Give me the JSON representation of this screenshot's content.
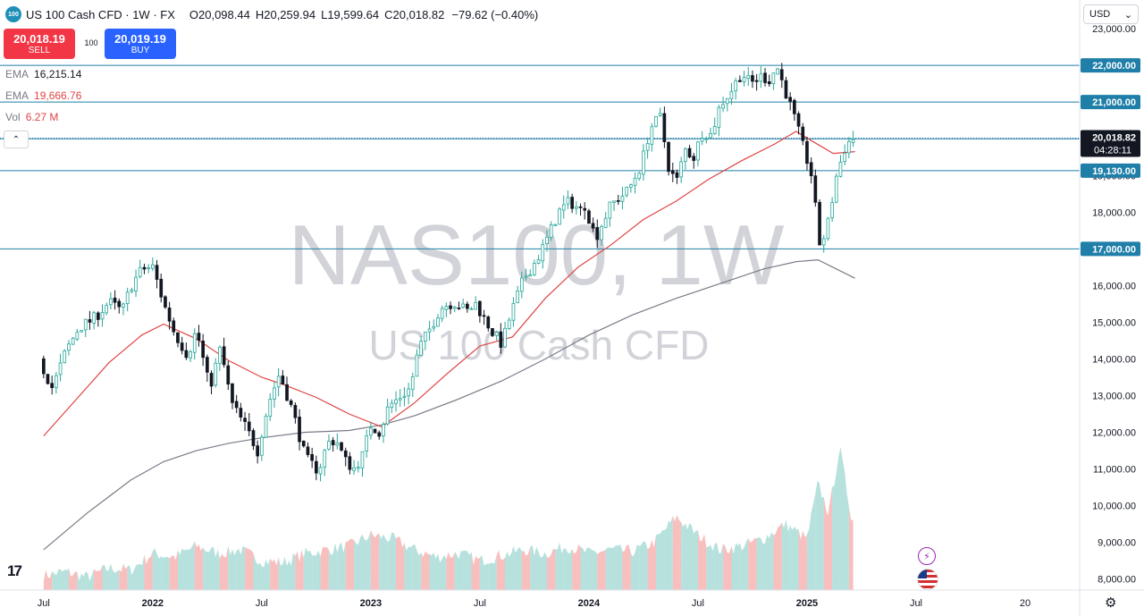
{
  "header": {
    "badge": "100",
    "title": "US 100 Cash CFD · 1W · FX",
    "ohlc": [
      {
        "label": "O",
        "value": "20,098.44"
      },
      {
        "label": "H",
        "value": "20,259.94"
      },
      {
        "label": "L",
        "value": "19,599.64"
      },
      {
        "label": "C",
        "value": "20,018.82"
      }
    ],
    "change": "−79.62 (−0.40%)"
  },
  "trade": {
    "sell_price": "20,018.19",
    "sell_label": "SELL",
    "spread": "100",
    "buy_price": "20,019.19",
    "buy_label": "BUY"
  },
  "indicators": [
    {
      "name": "EMA",
      "value": "16,215.14",
      "color": "#787b86"
    },
    {
      "name": "EMA",
      "value": "19,666.76",
      "color": "#e04444"
    },
    {
      "name": "Vol",
      "value": "6.27 M",
      "color": "#e04444"
    }
  ],
  "currency": "USD",
  "watermark": {
    "symbol": "NAS100, 1W",
    "name": "US 100 Cash CFD"
  },
  "icons": [
    "collapse-chevron-up-icon",
    "tradingview-logo-icon",
    "lightning-icon",
    "us-flag-icon",
    "gear-icon",
    "chevron-down-icon"
  ],
  "chart_data": {
    "type": "candlestick",
    "title": "",
    "xlabel": "",
    "ylabel": "",
    "ylim": [
      7700,
      23100
    ],
    "y_ticks": [
      "8,000.00",
      "9,000.00",
      "10,000.00",
      "11,000.00",
      "12,000.00",
      "13,000.00",
      "14,000.00",
      "15,000.00",
      "16,000.00",
      "17,000.00",
      "18,000.00",
      "19,000.00",
      "20,000.00",
      "21,000.00",
      "22,000.00",
      "23,000.00"
    ],
    "y_tick_values": [
      8000,
      9000,
      10000,
      11000,
      12000,
      13000,
      14000,
      15000,
      16000,
      17000,
      18000,
      19000,
      20000,
      21000,
      22000,
      23000
    ],
    "x_ticks": [
      {
        "label": "Jul",
        "t": 0.0
      },
      {
        "label": "2022",
        "t": 0.5
      },
      {
        "label": "Jul",
        "t": 1.0
      },
      {
        "label": "2023",
        "t": 1.5
      },
      {
        "label": "Jul",
        "t": 2.0
      },
      {
        "label": "2024",
        "t": 2.5
      },
      {
        "label": "Jul",
        "t": 3.0
      },
      {
        "label": "2025",
        "t": 3.5
      },
      {
        "label": "Jul",
        "t": 4.0
      },
      {
        "label": "20",
        "t": 4.5
      }
    ],
    "x_range": [
      -0.2,
      4.75
    ],
    "last_t": 3.89,
    "horizontal_levels": [
      {
        "value": 22000,
        "label": "22,000.00",
        "color": "#1f7fa8"
      },
      {
        "value": 21000,
        "label": "21,000.00",
        "color": "#1f7fa8"
      },
      {
        "value": 20000,
        "label": "20,000.00",
        "color": "#1f7fa8"
      },
      {
        "value": 19130,
        "label": "19,130.00",
        "color": "#1f7fa8"
      },
      {
        "value": 17000,
        "label": "17,000.00",
        "color": "#1f7fa8"
      }
    ],
    "last_price": {
      "value": 20018.82,
      "label": "20,018.82",
      "countdown": "04:28:11"
    },
    "anchors": [
      [
        0.0,
        14000
      ],
      [
        0.02,
        13700
      ],
      [
        0.06,
        13200
      ],
      [
        0.12,
        14200
      ],
      [
        0.18,
        14850
      ],
      [
        0.25,
        15100
      ],
      [
        0.32,
        15550
      ],
      [
        0.38,
        15300
      ],
      [
        0.42,
        16000
      ],
      [
        0.47,
        16450
      ],
      [
        0.52,
        16500
      ],
      [
        0.57,
        15500
      ],
      [
        0.62,
        14700
      ],
      [
        0.68,
        14100
      ],
      [
        0.72,
        14800
      ],
      [
        0.78,
        13200
      ],
      [
        0.83,
        14300
      ],
      [
        0.88,
        12800
      ],
      [
        0.95,
        12100
      ],
      [
        1.0,
        11500
      ],
      [
        1.05,
        12800
      ],
      [
        1.1,
        13600
      ],
      [
        1.16,
        12600
      ],
      [
        1.22,
        11300
      ],
      [
        1.28,
        10950
      ],
      [
        1.32,
        11700
      ],
      [
        1.36,
        11800
      ],
      [
        1.4,
        11250
      ],
      [
        1.44,
        11000
      ],
      [
        1.48,
        11350
      ],
      [
        1.52,
        12200
      ],
      [
        1.56,
        12000
      ],
      [
        1.6,
        12700
      ],
      [
        1.65,
        12950
      ],
      [
        1.7,
        13200
      ],
      [
        1.74,
        14300
      ],
      [
        1.78,
        14700
      ],
      [
        1.84,
        15400
      ],
      [
        1.9,
        15550
      ],
      [
        1.96,
        15300
      ],
      [
        2.0,
        15500
      ],
      [
        2.04,
        15100
      ],
      [
        2.08,
        14700
      ],
      [
        2.12,
        14400
      ],
      [
        2.16,
        15200
      ],
      [
        2.22,
        16200
      ],
      [
        2.28,
        16700
      ],
      [
        2.33,
        17300
      ],
      [
        2.38,
        18000
      ],
      [
        2.43,
        18300
      ],
      [
        2.48,
        18050
      ],
      [
        2.5,
        18200
      ],
      [
        2.55,
        17300
      ],
      [
        2.58,
        17700
      ],
      [
        2.62,
        18200
      ],
      [
        2.7,
        18600
      ],
      [
        2.76,
        19300
      ],
      [
        2.8,
        20300
      ],
      [
        2.85,
        20600
      ],
      [
        2.88,
        19300
      ],
      [
        2.92,
        18800
      ],
      [
        2.96,
        19700
      ],
      [
        3.0,
        19500
      ],
      [
        3.04,
        20200
      ],
      [
        3.08,
        20100
      ],
      [
        3.12,
        20900
      ],
      [
        3.17,
        21300
      ],
      [
        3.22,
        21800
      ],
      [
        3.26,
        21500
      ],
      [
        3.31,
        21700
      ],
      [
        3.35,
        21600
      ],
      [
        3.38,
        22000
      ],
      [
        3.42,
        21300
      ],
      [
        3.46,
        20600
      ],
      [
        3.5,
        19800
      ],
      [
        3.54,
        19000
      ],
      [
        3.58,
        17000
      ],
      [
        3.62,
        17800
      ],
      [
        3.65,
        18900
      ],
      [
        3.69,
        19700
      ],
      [
        3.72,
        20000
      ]
    ],
    "volume_scale_max": 11600,
    "volume_anchors": [
      [
        0.0,
        8100
      ],
      [
        0.1,
        8200
      ],
      [
        0.2,
        8050
      ],
      [
        0.3,
        8300
      ],
      [
        0.4,
        8250
      ],
      [
        0.5,
        8700
      ],
      [
        0.6,
        8600
      ],
      [
        0.7,
        8900
      ],
      [
        0.8,
        8700
      ],
      [
        0.9,
        8800
      ],
      [
        1.0,
        8500
      ],
      [
        1.1,
        8450
      ],
      [
        1.2,
        8700
      ],
      [
        1.3,
        8800
      ],
      [
        1.4,
        8900
      ],
      [
        1.5,
        9200
      ],
      [
        1.6,
        9100
      ],
      [
        1.7,
        8800
      ],
      [
        1.8,
        8600
      ],
      [
        1.9,
        8700
      ],
      [
        2.0,
        8500
      ],
      [
        2.1,
        8650
      ],
      [
        2.2,
        8800
      ],
      [
        2.3,
        8700
      ],
      [
        2.4,
        8900
      ],
      [
        2.5,
        8700
      ],
      [
        2.6,
        8800
      ],
      [
        2.7,
        8750
      ],
      [
        2.8,
        9000
      ],
      [
        2.9,
        9700
      ],
      [
        3.0,
        9200
      ],
      [
        3.1,
        8800
      ],
      [
        3.2,
        8900
      ],
      [
        3.3,
        9100
      ],
      [
        3.4,
        9500
      ],
      [
        3.5,
        9100
      ],
      [
        3.55,
        10600
      ],
      [
        3.6,
        9800
      ],
      [
        3.65,
        11600
      ],
      [
        3.7,
        9800
      ],
      [
        3.72,
        9500
      ]
    ],
    "ema_fast": [
      [
        0.0,
        11900
      ],
      [
        0.15,
        12900
      ],
      [
        0.3,
        13900
      ],
      [
        0.45,
        14650
      ],
      [
        0.55,
        14950
      ],
      [
        0.7,
        14550
      ],
      [
        0.85,
        13950
      ],
      [
        1.0,
        13500
      ],
      [
        1.1,
        13300
      ],
      [
        1.25,
        12950
      ],
      [
        1.4,
        12500
      ],
      [
        1.55,
        12150
      ],
      [
        1.7,
        12800
      ],
      [
        1.85,
        13600
      ],
      [
        2.0,
        14350
      ],
      [
        2.15,
        14600
      ],
      [
        2.3,
        15650
      ],
      [
        2.45,
        16500
      ],
      [
        2.6,
        17100
      ],
      [
        2.75,
        17800
      ],
      [
        2.9,
        18300
      ],
      [
        3.05,
        18900
      ],
      [
        3.2,
        19400
      ],
      [
        3.35,
        19850
      ],
      [
        3.45,
        20200
      ],
      [
        3.52,
        19950
      ],
      [
        3.62,
        19600
      ],
      [
        3.72,
        19650
      ]
    ],
    "ema_slow": [
      [
        0.0,
        8800
      ],
      [
        0.2,
        9800
      ],
      [
        0.4,
        10700
      ],
      [
        0.55,
        11200
      ],
      [
        0.7,
        11500
      ],
      [
        0.85,
        11700
      ],
      [
        1.0,
        11850
      ],
      [
        1.2,
        12000
      ],
      [
        1.4,
        12050
      ],
      [
        1.55,
        12200
      ],
      [
        1.7,
        12450
      ],
      [
        1.9,
        12900
      ],
      [
        2.1,
        13400
      ],
      [
        2.3,
        14000
      ],
      [
        2.5,
        14650
      ],
      [
        2.7,
        15200
      ],
      [
        2.9,
        15650
      ],
      [
        3.1,
        16050
      ],
      [
        3.3,
        16450
      ],
      [
        3.45,
        16650
      ],
      [
        3.55,
        16700
      ],
      [
        3.72,
        16200
      ]
    ],
    "colors": {
      "up": "#26a69a",
      "down": "#131722",
      "up_body": "#ffffff",
      "ema_fast": "#e04444",
      "ema_slow": "#787b86",
      "vol_up": "#a9dcd6",
      "vol_down": "#f7b4b4",
      "level": "#1f7fa8"
    }
  }
}
